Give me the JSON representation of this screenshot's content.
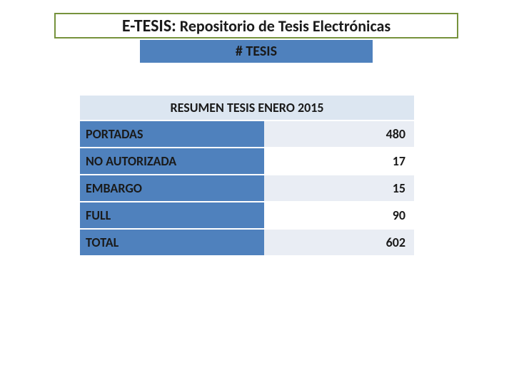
{
  "colors": {
    "titleBorder": "#76923c",
    "subtitleBg": "#4f81bd",
    "headerBg": "#dce6f1",
    "labelBg": "#4f81bd",
    "valueBgAlt1": "#e9edf4",
    "valueBgAlt2": "#ffffff",
    "rowBorder": "#ffffff",
    "text": "#1a1a1a"
  },
  "title": {
    "prefix": "E-TESIS:",
    "suffix": " Repositorio de Tesis Electrónicas"
  },
  "subtitle": "# TESIS",
  "table": {
    "header": "RESUMEN TESIS ENERO 2015",
    "rows": [
      {
        "label": "PORTADAS",
        "value": "480"
      },
      {
        "label": "NO AUTORIZADA",
        "value": "17"
      },
      {
        "label": "EMBARGO",
        "value": "15"
      },
      {
        "label": "FULL",
        "value": "90"
      },
      {
        "label": "TOTAL",
        "value": "602"
      }
    ]
  }
}
